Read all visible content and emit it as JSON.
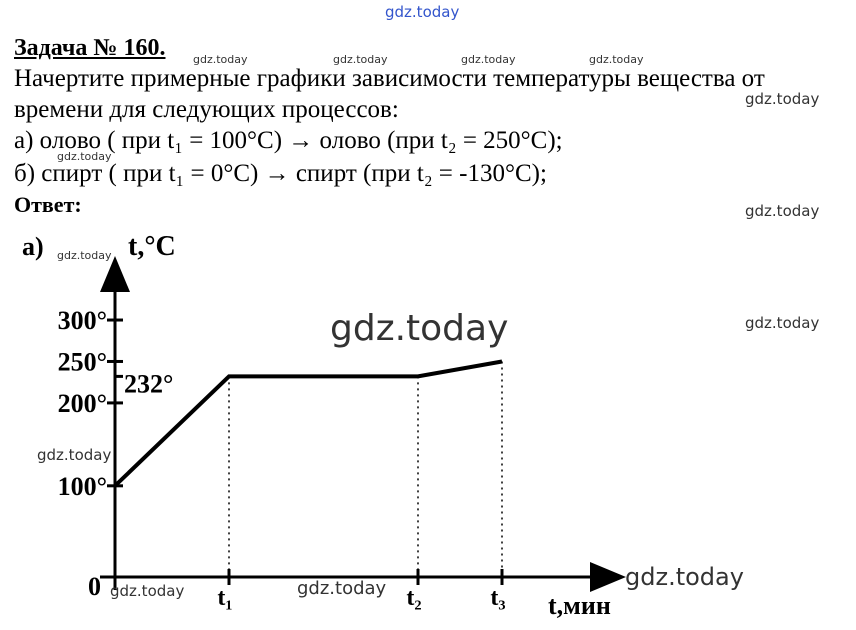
{
  "header": {
    "title": "Задача № 160."
  },
  "text": {
    "lines": [
      "Начертите примерные графики зависимости температуры вещества от",
      "времени для следующих процессов:",
      "а) олово ( при t₁ = 100°C) → олово (при t₂ = 250°C);",
      "б) спирт ( при t₁ = 0°C) → спирт (при t₂ = -130°C);"
    ],
    "answer": "Ответ:"
  },
  "chart_data": {
    "type": "line",
    "panel": "а)",
    "y_label": "t,°C",
    "x_label": "t,мин",
    "origin": "0",
    "categories": [
      "0",
      "t₁",
      "t₂",
      "t₃"
    ],
    "values": [
      100,
      232,
      232,
      250
    ],
    "color": "#000",
    "ylim": [
      -10,
      370
    ],
    "yticks": [
      {
        "value": 100,
        "label": "100°"
      },
      {
        "value": 200,
        "label": "200°"
      },
      {
        "value": 250,
        "label": "250°"
      },
      {
        "value": 300,
        "label": "300°"
      }
    ],
    "annotation": {
      "value": 232,
      "label": "232°"
    }
  },
  "watermarks": [
    "gdz.today",
    "gdz.today",
    "gdz.today",
    "gdz.today",
    "gdz.today",
    "gdz.today",
    "gdz.today",
    "gdz.today",
    "gdz.today",
    "gdz.today",
    "gdz.today",
    "gdz.today",
    "gdz.today",
    "gdz.today",
    "gdz.today"
  ]
}
